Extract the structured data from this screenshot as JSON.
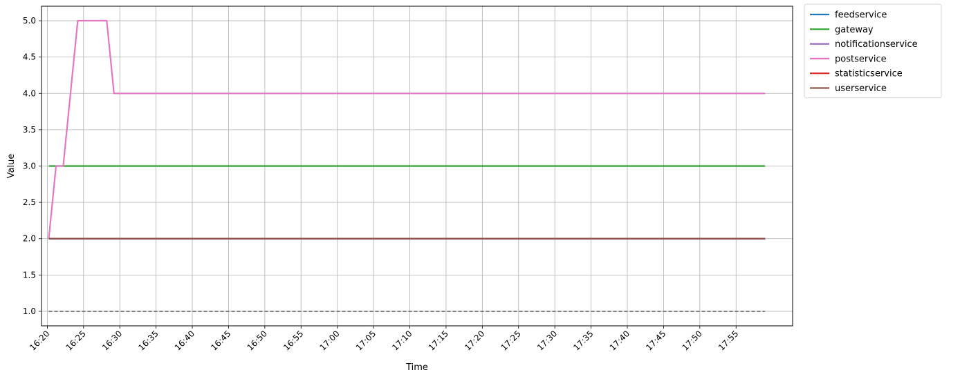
{
  "chart_data": {
    "type": "line",
    "title": "",
    "xlabel": "Time",
    "ylabel": "Value",
    "x_ticks": [
      "16:20",
      "16:25",
      "16:30",
      "16:35",
      "16:40",
      "16:45",
      "16:50",
      "16:55",
      "17:00",
      "17:05",
      "17:10",
      "17:15",
      "17:20",
      "17:25",
      "17:30",
      "17:35",
      "17:40",
      "17:45",
      "17:50",
      "17:55"
    ],
    "x_tick_minutes": [
      0,
      5,
      10,
      15,
      20,
      25,
      30,
      35,
      40,
      45,
      50,
      55,
      60,
      65,
      70,
      75,
      80,
      85,
      90,
      95
    ],
    "xlim_minutes": [
      -0.8,
      102.8
    ],
    "x_end": "17:59",
    "y_ticks": [
      "1.0",
      "1.5",
      "2.0",
      "2.5",
      "3.0",
      "3.5",
      "4.0",
      "4.5",
      "5.0"
    ],
    "ylim": [
      0.8,
      5.2
    ],
    "grid": true,
    "legend_position": "outside-top-right",
    "series": [
      {
        "name": "feedservice",
        "color": "#1f77b4",
        "dashed": false,
        "points": [
          [
            0.2,
            2
          ],
          [
            99,
            2
          ]
        ]
      },
      {
        "name": "gateway",
        "color": "#2ca02c",
        "dashed": false,
        "points": [
          [
            0.2,
            3
          ],
          [
            99,
            3
          ]
        ]
      },
      {
        "name": "notificationservice",
        "color": "#9467bd",
        "dashed": false,
        "points": [
          [
            0.2,
            2
          ],
          [
            99,
            2
          ]
        ]
      },
      {
        "name": "postservice",
        "color": "#e377c2",
        "dashed": false,
        "points": [
          [
            0.2,
            2
          ],
          [
            1.2,
            3
          ],
          [
            2.2,
            3
          ],
          [
            4.2,
            5
          ],
          [
            8.2,
            5
          ],
          [
            9.2,
            4
          ],
          [
            99,
            4
          ]
        ]
      },
      {
        "name": "statisticservice",
        "color": "#d62728",
        "dashed": false,
        "points": [
          [
            0.2,
            2
          ],
          [
            99,
            2
          ]
        ]
      },
      {
        "name": "userservice",
        "color": "#8c564b",
        "dashed": false,
        "points": [
          [
            0.2,
            2
          ],
          [
            99,
            2
          ]
        ]
      },
      {
        "name": "",
        "color": "#7f7f7f",
        "dashed": true,
        "points": [
          [
            0.2,
            1
          ],
          [
            99,
            1
          ]
        ]
      }
    ]
  }
}
